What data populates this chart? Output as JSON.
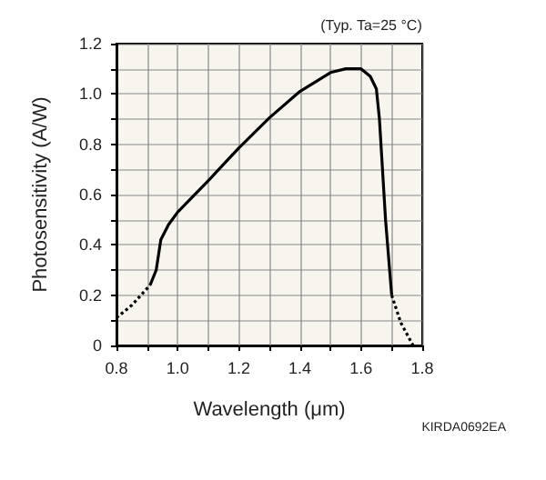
{
  "chart_data": {
    "type": "line",
    "xlabel": "Wavelength (μm)",
    "ylabel": "Photosensitivity (A/W)",
    "annotations": [
      "(Typ. Ta=25 °C)",
      "KIRDA0692EA"
    ],
    "xlim": [
      0.8,
      1.8
    ],
    "ylim": [
      0,
      1.2
    ],
    "xticks": [
      {
        "value": 0.8,
        "label": "0.8"
      },
      {
        "value": 0.9,
        "label": null
      },
      {
        "value": 1.0,
        "label": "1.0"
      },
      {
        "value": 1.1,
        "label": null
      },
      {
        "value": 1.2,
        "label": "1.2"
      },
      {
        "value": 1.3,
        "label": null
      },
      {
        "value": 1.4,
        "label": "1.4"
      },
      {
        "value": 1.5,
        "label": null
      },
      {
        "value": 1.6,
        "label": "1.6"
      },
      {
        "value": 1.7,
        "label": null
      },
      {
        "value": 1.8,
        "label": "1.8"
      }
    ],
    "yticks": [
      0,
      {
        "value": 0.1,
        "label": null
      },
      {
        "value": 0.2,
        "label": "0.2"
      },
      {
        "value": 0.3,
        "label": null
      },
      {
        "value": 0.4,
        "label": "0.4"
      },
      {
        "value": 0.5,
        "label": null
      },
      {
        "value": 0.6,
        "label": "0.6"
      },
      {
        "value": 0.7,
        "label": null
      },
      {
        "value": 0.8,
        "label": "0.8"
      },
      {
        "value": 0.9,
        "label": null
      },
      {
        "value": 1.0,
        "label": "1.0"
      },
      {
        "value": 1.1,
        "label": null
      },
      {
        "value": 1.2,
        "label": "1.2"
      }
    ],
    "grid": true,
    "marker": "none",
    "series": [
      {
        "color": "#000000",
        "line_style": "dotted",
        "x": [
          0.8,
          0.85,
          0.91
        ],
        "values": [
          0.11,
          0.16,
          0.24
        ]
      },
      {
        "color": "#000000",
        "line_style": "solid",
        "x": [
          0.91,
          0.93,
          0.945,
          0.97,
          1.0,
          1.1,
          1.2,
          1.3,
          1.4,
          1.5,
          1.55,
          1.6,
          1.63,
          1.65,
          1.66,
          1.68,
          1.7
        ],
        "values": [
          0.24,
          0.3,
          0.42,
          0.48,
          0.53,
          0.655,
          0.785,
          0.905,
          1.01,
          1.085,
          1.1,
          1.1,
          1.07,
          1.02,
          0.9,
          0.5,
          0.2
        ]
      },
      {
        "color": "#000000",
        "line_style": "dotted",
        "x": [
          1.7,
          1.73,
          1.77
        ],
        "values": [
          0.2,
          0.09,
          0
        ]
      }
    ]
  }
}
